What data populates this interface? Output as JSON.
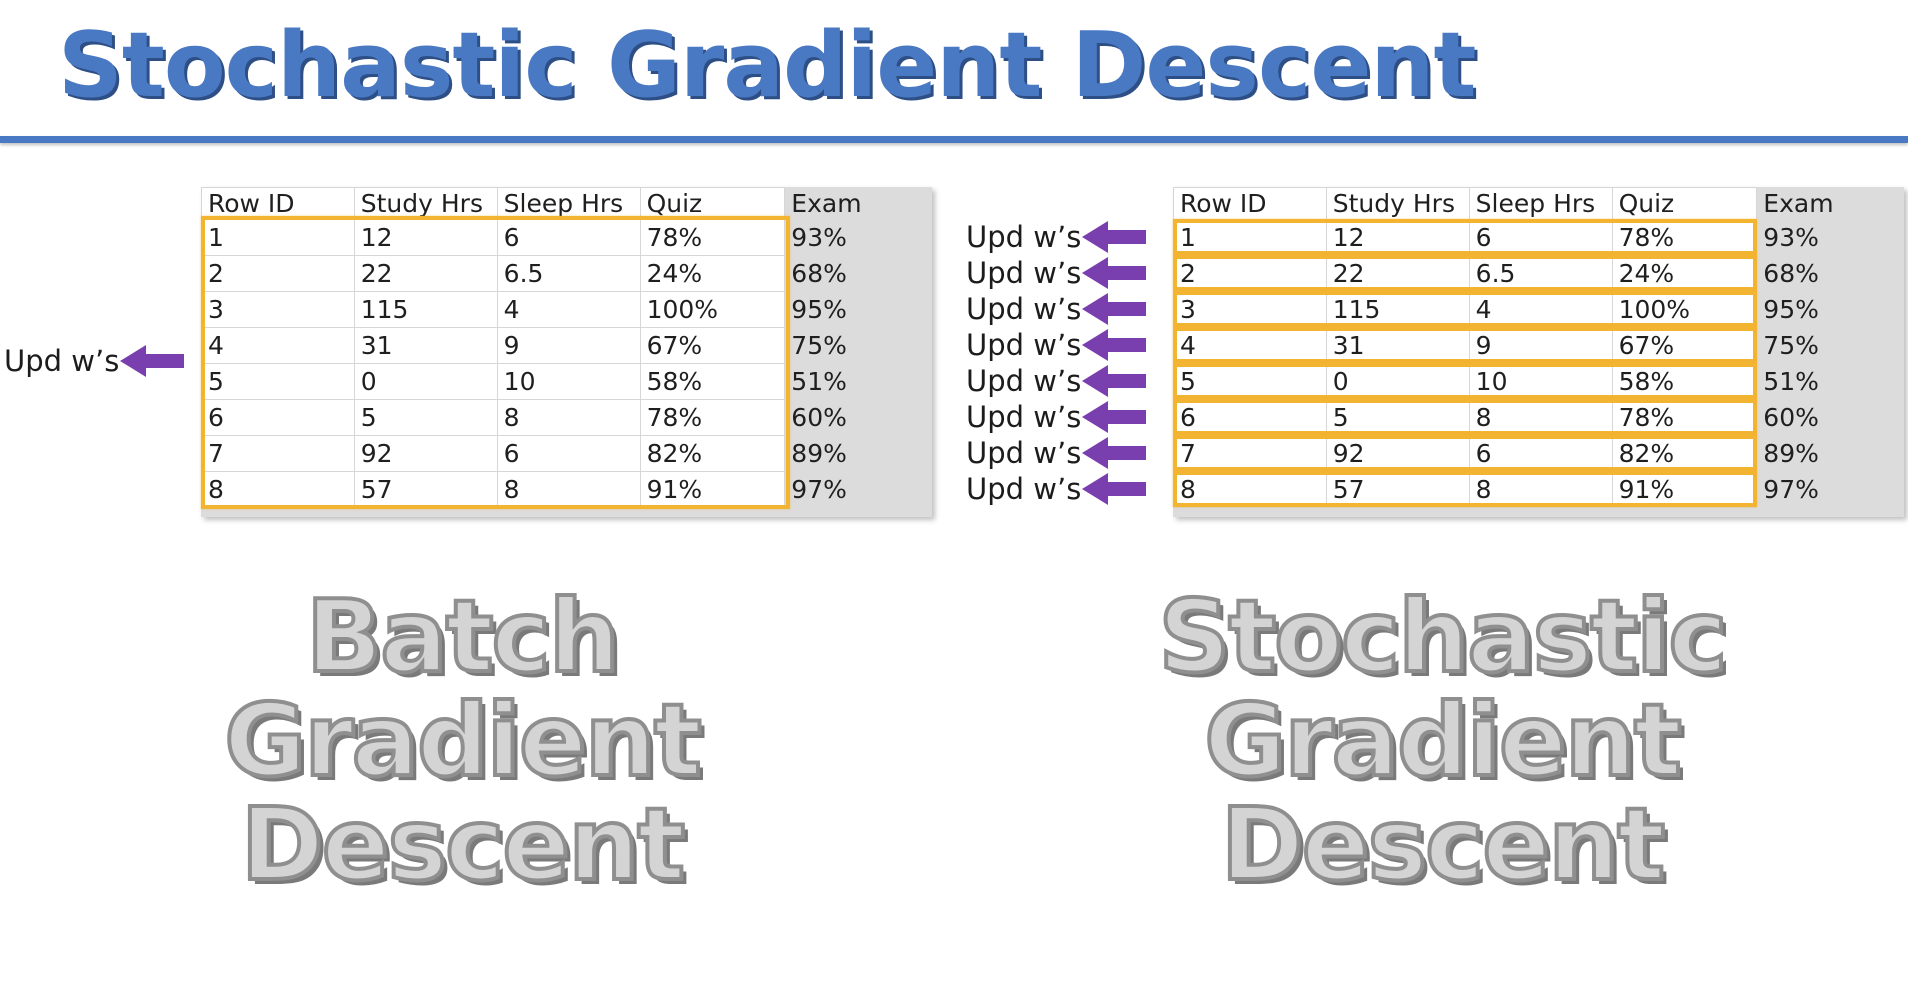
{
  "title": "Stochastic Gradient Descent",
  "colors": {
    "title_blue": "#4a79c3",
    "highlight_orange": "#f3b431",
    "arrow_purple": "#7a3fae",
    "caption_gray": "#d4d4d4"
  },
  "table": {
    "headers": {
      "row_id": "Row ID",
      "study_hrs": "Study Hrs",
      "sleep_hrs": "Sleep Hrs",
      "quiz": "Quiz",
      "exam": "Exam"
    },
    "rows": [
      {
        "row_id": "1",
        "study_hrs": "12",
        "sleep_hrs": "6",
        "quiz": "78%",
        "exam": "93%"
      },
      {
        "row_id": "2",
        "study_hrs": "22",
        "sleep_hrs": "6.5",
        "quiz": "24%",
        "exam": "68%"
      },
      {
        "row_id": "3",
        "study_hrs": "115",
        "sleep_hrs": "4",
        "quiz": "100%",
        "exam": "95%"
      },
      {
        "row_id": "4",
        "study_hrs": "31",
        "sleep_hrs": "9",
        "quiz": "67%",
        "exam": "75%"
      },
      {
        "row_id": "5",
        "study_hrs": "0",
        "sleep_hrs": "10",
        "quiz": "58%",
        "exam": "51%"
      },
      {
        "row_id": "6",
        "study_hrs": "5",
        "sleep_hrs": "8",
        "quiz": "78%",
        "exam": "60%"
      },
      {
        "row_id": "7",
        "study_hrs": "92",
        "sleep_hrs": "6",
        "quiz": "82%",
        "exam": "89%"
      },
      {
        "row_id": "8",
        "study_hrs": "57",
        "sleep_hrs": "8",
        "quiz": "91%",
        "exam": "97%"
      }
    ]
  },
  "update_label": "Upd w’s",
  "update_arrow_icon": "left-arrow-icon",
  "batch_caption": {
    "line1": "Batch",
    "line2": "Gradient",
    "line3": "Descent"
  },
  "stochastic_caption": {
    "line1": "Stochastic",
    "line2": "Gradient",
    "line3": "Descent"
  }
}
